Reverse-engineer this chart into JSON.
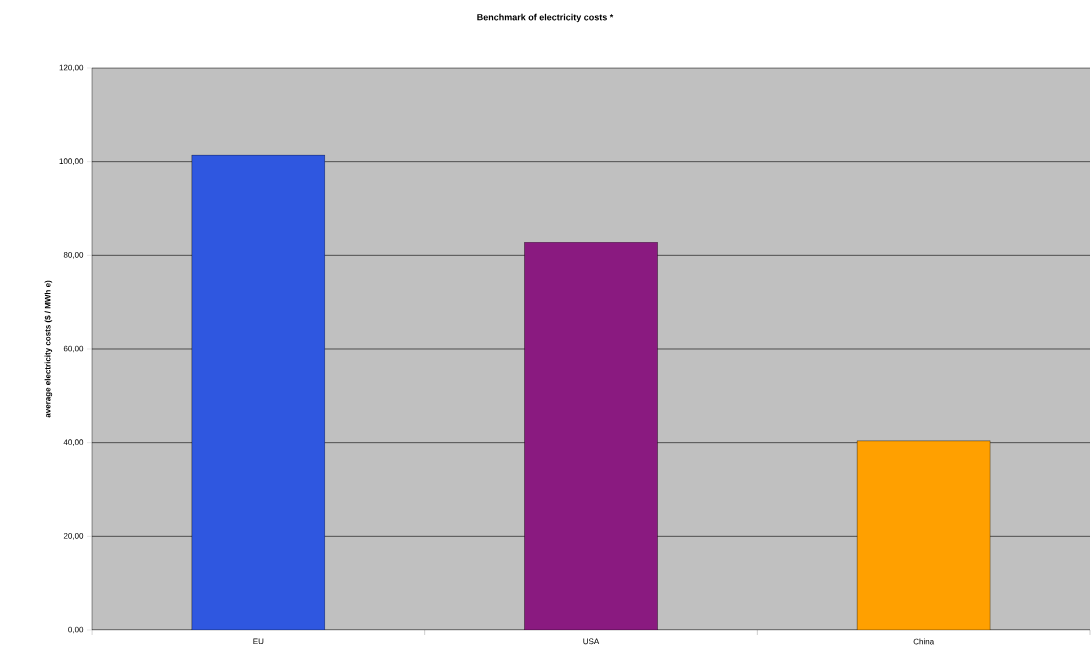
{
  "chart_data": {
    "type": "bar",
    "title": "Benchmark of electricity costs *",
    "ylabel": "average electricity costs ($ / MWh e)",
    "categories": [
      "EU",
      "USA",
      "China"
    ],
    "values": [
      101.4,
      82.8,
      40.4
    ],
    "colors": [
      "#2f57e0",
      "#8a1a80",
      "#ffa000"
    ],
    "ylim": [
      0,
      120
    ],
    "yticks": [
      {
        "value": 0,
        "label": "0,00"
      },
      {
        "value": 20,
        "label": "20,00"
      },
      {
        "value": 40,
        "label": "40,00"
      },
      {
        "value": 60,
        "label": "60,00"
      },
      {
        "value": 80,
        "label": "80,00"
      },
      {
        "value": 100,
        "label": "100,00"
      },
      {
        "value": 120,
        "label": "120,00"
      }
    ],
    "grid": "y"
  }
}
